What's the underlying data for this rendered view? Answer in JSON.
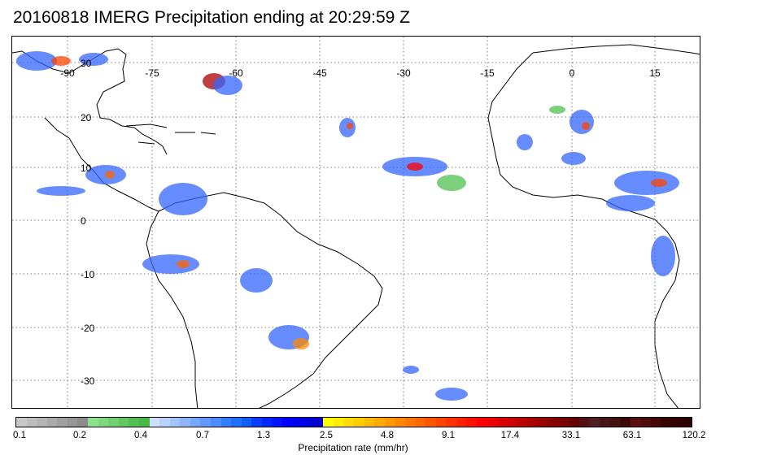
{
  "title": "20160818 IMERG Precipitation ending at 20:29:59 Z",
  "map": {
    "lon_labels": [
      "-90",
      "-75",
      "-60",
      "-45",
      "-30",
      "-15",
      "0",
      "15"
    ],
    "lat_labels": [
      "30",
      "20",
      "10",
      "0",
      "-10",
      "-20",
      "-30"
    ],
    "gridlines": "dotted",
    "projection": "lat-lon",
    "region": "Tropical Atlantic, South America and West Africa"
  },
  "colorbar": {
    "title": "Precipitation rate (mm/hr)",
    "tick_labels": [
      "0.1",
      "0.2",
      "0.4",
      "0.7",
      "1.3",
      "2.5",
      "4.8",
      "9.1",
      "17.4",
      "33.1",
      "63.1",
      "120.2"
    ],
    "colors": [
      "#c8c8c8",
      "#bebebe",
      "#b4b4b4",
      "#aaaaaa",
      "#a0a0a0",
      "#969696",
      "#8c8c8c",
      "#8ee08e",
      "#7fd87f",
      "#70d070",
      "#62c862",
      "#54c054",
      "#46b846",
      "#cfe0ff",
      "#b9d2ff",
      "#a3c4ff",
      "#8db6ff",
      "#77a8ff",
      "#619aff",
      "#4b8cff",
      "#357eff",
      "#1f70ff",
      "#1060f5",
      "#0a3cff",
      "#0028ff",
      "#0014ff",
      "#0000ff",
      "#0000f0",
      "#0000e0",
      "#0000d0",
      "#ffff00",
      "#ffee00",
      "#ffdd00",
      "#ffcc00",
      "#ffbb00",
      "#ffaa00",
      "#ff9900",
      "#ff8800",
      "#ff7700",
      "#ff6600",
      "#ff5500",
      "#ff4400",
      "#ff3300",
      "#ff2200",
      "#ff1100",
      "#ff0000",
      "#ee0000",
      "#dd0000",
      "#cc0000",
      "#bb0000",
      "#aa0000",
      "#990000",
      "#880000",
      "#770000",
      "#660000",
      "#551111",
      "#502020",
      "#4a1515",
      "#441010",
      "#3e0808",
      "#5a1010",
      "#4f0c0c",
      "#450808",
      "#3b0404",
      "#330000",
      "#2b0000"
    ]
  }
}
